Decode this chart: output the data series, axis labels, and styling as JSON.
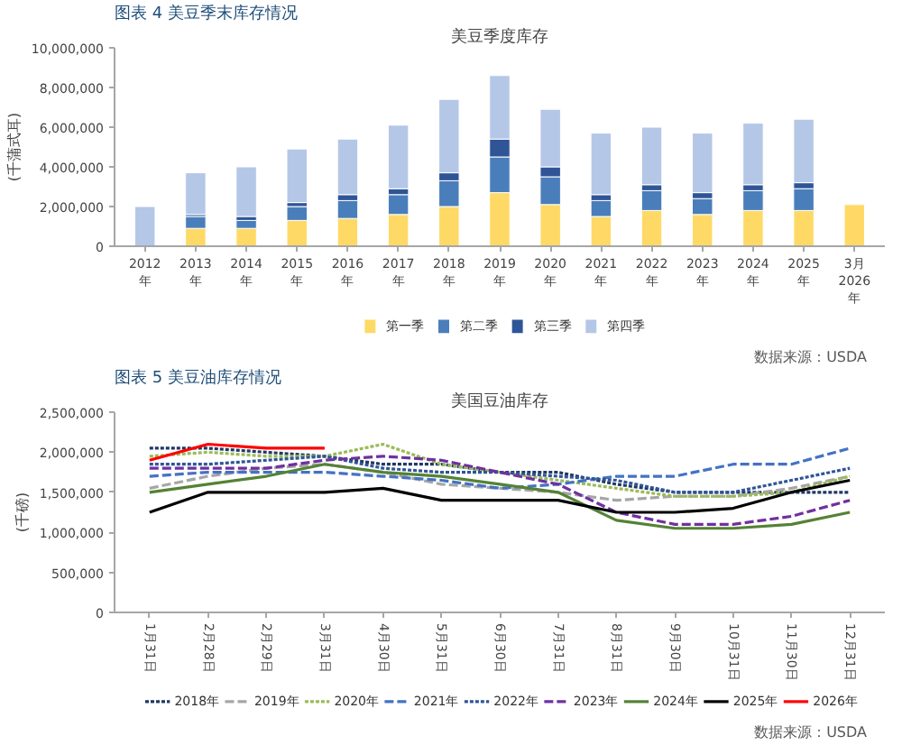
{
  "chart_data": [
    {
      "type": "bar",
      "stacked": true,
      "title": "美豆季度库存",
      "ylabel": "(千蒲式耳)",
      "annotations": [
        "图表 4  美豆季末库存情况",
        "数据来源：USDA"
      ],
      "categories": [
        "2012\n年",
        "2013\n年",
        "2014\n年",
        "2015\n年",
        "2016\n年",
        "2017\n年",
        "2018\n年",
        "2019\n年",
        "2020\n年",
        "2021\n年",
        "2022\n年",
        "2023\n年",
        "2024\n年",
        "2025\n年",
        "3月\n2026\n年"
      ],
      "series": [
        {
          "name": "第一季",
          "color": "#ffd966",
          "values": [
            null,
            900000,
            900000,
            1300000,
            1400000,
            1600000,
            2000000,
            2700000,
            2100000,
            1500000,
            1800000,
            1600000,
            1800000,
            1800000,
            2100000
          ]
        },
        {
          "name": "第二季",
          "color": "#4a7ebb",
          "values": [
            null,
            600000,
            400000,
            700000,
            900000,
            1000000,
            1300000,
            1800000,
            1400000,
            800000,
            1000000,
            800000,
            1000000,
            1100000,
            null
          ]
        },
        {
          "name": "第三季",
          "color": "#2f5597",
          "values": [
            null,
            100000,
            200000,
            200000,
            300000,
            300000,
            400000,
            900000,
            500000,
            300000,
            300000,
            300000,
            300000,
            300000,
            null
          ]
        },
        {
          "name": "第四季",
          "color": "#b4c7e7",
          "values": [
            2000000,
            2100000,
            2500000,
            2700000,
            2800000,
            3200000,
            3700000,
            3200000,
            2900000,
            3100000,
            2900000,
            3000000,
            3100000,
            3200000,
            null
          ]
        }
      ],
      "ylim": [
        0,
        10000000
      ],
      "yticks": [
        {
          "value": 0,
          "label": "0"
        },
        {
          "value": 2000000,
          "label": "2,000,000"
        },
        {
          "value": 4000000,
          "label": "4,000,000"
        },
        {
          "value": 6000000,
          "label": "6,000,000"
        },
        {
          "value": 8000000,
          "label": "8,000,000"
        },
        {
          "value": 10000000,
          "label": "10,000,000"
        }
      ],
      "grid": false,
      "legend": "bottom"
    },
    {
      "type": "line",
      "title": "美国豆油库存",
      "ylabel": "(千磅)",
      "annotations": [
        "图表 5  美豆油库存情况",
        "数据来源：USDA"
      ],
      "categories": [
        "1月31日",
        "2月28日",
        "2月29日",
        "3月31日",
        "4月30日",
        "5月31日",
        "6月30日",
        "7月31日",
        "8月31日",
        "9月30日",
        "10月31日",
        "11月30日",
        "12月31日"
      ],
      "series": [
        {
          "name": "2018年",
          "color": "#1f3864",
          "line_style": "dotted",
          "values": [
            2050000,
            2050000,
            2000000,
            1950000,
            1850000,
            1850000,
            1750000,
            1750000,
            1600000,
            1500000,
            1500000,
            1500000,
            1500000
          ]
        },
        {
          "name": "2019年",
          "color": "#a6a6a6",
          "line_style": "dashed",
          "values": [
            1550000,
            1700000,
            1800000,
            1850000,
            1750000,
            1600000,
            1550000,
            1500000,
            1400000,
            1450000,
            1450000,
            1550000,
            1700000
          ]
        },
        {
          "name": "2020年",
          "color": "#9bbb59",
          "line_style": "dotted",
          "values": [
            1950000,
            2000000,
            1950000,
            1950000,
            2100000,
            1850000,
            1750000,
            1650000,
            1550000,
            1450000,
            1450000,
            1500000,
            1700000
          ]
        },
        {
          "name": "2021年",
          "color": "#4472c4",
          "line_style": "dashed",
          "values": [
            1700000,
            1750000,
            1750000,
            1750000,
            1700000,
            1650000,
            1550000,
            1600000,
            1700000,
            1700000,
            1850000,
            1850000,
            2050000
          ]
        },
        {
          "name": "2022年",
          "color": "#2f5597",
          "line_style": "dotted",
          "values": [
            1850000,
            1850000,
            1900000,
            1950000,
            1800000,
            1750000,
            1750000,
            1700000,
            1650000,
            1500000,
            1500000,
            1650000,
            1800000
          ]
        },
        {
          "name": "2023年",
          "color": "#7030a0",
          "line_style": "dashed",
          "values": [
            1800000,
            1800000,
            1800000,
            1900000,
            1950000,
            1900000,
            1750000,
            1600000,
            1250000,
            1100000,
            1100000,
            1200000,
            1400000
          ]
        },
        {
          "name": "2024年",
          "color": "#548235",
          "line_style": "solid",
          "values": [
            1500000,
            1600000,
            1700000,
            1850000,
            1750000,
            1700000,
            1600000,
            1500000,
            1150000,
            1050000,
            1050000,
            1100000,
            1250000
          ]
        },
        {
          "name": "2025年",
          "color": "#000000",
          "line_style": "solid",
          "values": [
            1250000,
            1500000,
            1500000,
            1500000,
            1550000,
            1400000,
            1400000,
            1400000,
            1250000,
            1250000,
            1300000,
            1500000,
            1650000
          ]
        },
        {
          "name": "2026年",
          "color": "#ff0000",
          "line_style": "solid",
          "values": [
            1900000,
            2100000,
            2050000,
            2050000,
            null,
            null,
            null,
            null,
            null,
            null,
            null,
            null,
            null
          ]
        }
      ],
      "ylim": [
        0,
        2500000
      ],
      "yticks": [
        {
          "value": 0,
          "label": "0"
        },
        {
          "value": 500000,
          "label": "500,000"
        },
        {
          "value": 1000000,
          "label": "1,000,000"
        },
        {
          "value": 1500000,
          "label": "1,500,000"
        },
        {
          "value": 2000000,
          "label": "2,000,000"
        },
        {
          "value": 2500000,
          "label": "2,500,000"
        }
      ],
      "grid": false,
      "legend": "bottom"
    }
  ]
}
